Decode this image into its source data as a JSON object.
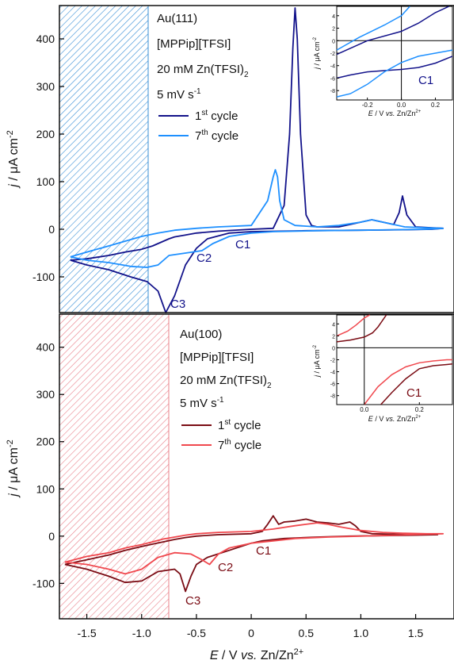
{
  "figure": {
    "xlabel": {
      "pre": "E",
      "mid": " / V ",
      "italic": "vs.",
      "post": " Zn/Zn",
      "sup": "2+"
    },
    "ylabel": {
      "pre": "j",
      "mid": " / μA cm",
      "sup": "-2"
    },
    "x_ticks": [
      "-1.5",
      "-1.0",
      "-0.5",
      "0",
      "0.5",
      "1.0",
      "1.5"
    ],
    "y_ticks": [
      "-100",
      "0",
      "100",
      "200",
      "300",
      "400"
    ]
  },
  "chart_data": [
    {
      "type": "line",
      "panel": "top",
      "colors": {
        "cycle1": "#12128a",
        "cycle7": "#1e90ff",
        "hatch": "#3a8fd6"
      },
      "legend": {
        "lines": [
          "Au(111)",
          "[MPPip][TFSI]",
          "20 mM Zn(TFSI)",
          "5 mV s"
        ],
        "sub": "2",
        "sup": "-1",
        "cycle1_num": "1",
        "cycle1_sup": "st",
        "cycle1_text": " cycle",
        "cycle7_num": "7",
        "cycle7_sup": "th",
        "cycle7_text": " cycle"
      },
      "annotations": [
        "C1",
        "C2",
        "C3"
      ],
      "hatched_region": [
        -1.72,
        -0.95
      ],
      "xlim": [
        -1.75,
        1.85
      ],
      "ylim": [
        -175,
        470
      ],
      "series": [
        {
          "key": "cycle1",
          "x": [
            -1.65,
            -1.5,
            -1.3,
            -1.15,
            -1.0,
            -0.9,
            -0.8,
            -0.75,
            -0.7,
            -0.6,
            -0.5,
            -0.3,
            0.0,
            0.2,
            0.3,
            0.35,
            0.38,
            0.4,
            0.42,
            0.45,
            0.5,
            0.55,
            0.6,
            0.8,
            0.9,
            1.0,
            1.1,
            1.2,
            1.3,
            1.35,
            1.38,
            1.42,
            1.5,
            1.65,
            1.75,
            1.65,
            1.4,
            1.0,
            0.5,
            0.0,
            -0.2,
            -0.4,
            -0.5,
            -0.6,
            -0.7,
            -0.78,
            -0.85,
            -0.95,
            -1.1,
            -1.3,
            -1.5,
            -1.65
          ],
          "y": [
            -65,
            -62,
            -55,
            -48,
            -42,
            -35,
            -25,
            -20,
            -16,
            -12,
            -8,
            -4,
            0,
            2,
            50,
            200,
            380,
            465,
            400,
            200,
            30,
            8,
            5,
            5,
            10,
            15,
            20,
            15,
            10,
            35,
            70,
            30,
            5,
            3,
            2,
            0,
            -1,
            -2,
            -3,
            -5,
            -8,
            -20,
            -40,
            -75,
            -140,
            -175,
            -130,
            -110,
            -100,
            -85,
            -75,
            -65
          ]
        },
        {
          "key": "cycle7",
          "x": [
            -1.65,
            -1.5,
            -1.3,
            -1.15,
            -1.0,
            -0.85,
            -0.7,
            -0.5,
            -0.3,
            0.0,
            0.15,
            0.2,
            0.22,
            0.24,
            0.26,
            0.3,
            0.4,
            0.6,
            0.8,
            1.0,
            1.1,
            1.2,
            1.4,
            1.6,
            1.75,
            1.6,
            1.3,
            1.0,
            0.6,
            0.2,
            0.0,
            -0.2,
            -0.35,
            -0.45,
            -0.6,
            -0.75,
            -0.85,
            -0.95,
            -1.1,
            -1.3,
            -1.5,
            -1.65
          ],
          "y": [
            -58,
            -48,
            -35,
            -25,
            -15,
            -8,
            -2,
            2,
            5,
            8,
            60,
            110,
            125,
            110,
            60,
            20,
            8,
            5,
            8,
            15,
            20,
            15,
            5,
            3,
            2,
            0,
            -1,
            -2,
            -3,
            -5,
            -8,
            -15,
            -30,
            -45,
            -50,
            -55,
            -75,
            -80,
            -78,
            -70,
            -65,
            -58
          ]
        }
      ],
      "inset": {
        "annotation": "C1",
        "xlim": [
          -0.38,
          0.3
        ],
        "ylim": [
          -9.5,
          5.5
        ],
        "x_ticks": [
          "-0.2",
          "0.0",
          "0.2"
        ],
        "y_ticks": [
          "-8",
          "-6",
          "-4",
          "-2",
          "0",
          "2",
          "4"
        ],
        "series": [
          {
            "key": "cycle1",
            "x": [
              -0.38,
              -0.2,
              0.0,
              0.1,
              0.2,
              0.28
            ],
            "y": [
              -2.2,
              0.0,
              1.5,
              2.8,
              4.5,
              5.5
            ]
          },
          {
            "key": "cycle1",
            "x": [
              -0.38,
              -0.3,
              -0.2,
              -0.1,
              0.0,
              0.1,
              0.2,
              0.3
            ],
            "y": [
              -6.0,
              -5.5,
              -5.0,
              -4.8,
              -4.6,
              -4.3,
              -3.6,
              -2.5
            ]
          },
          {
            "key": "cycle7",
            "x": [
              -0.38,
              -0.25,
              -0.1,
              0.0,
              0.05
            ],
            "y": [
              -1.5,
              0.5,
              2.5,
              4.0,
              5.5
            ]
          },
          {
            "key": "cycle7",
            "x": [
              -0.38,
              -0.3,
              -0.2,
              -0.1,
              0.0,
              0.1,
              0.2,
              0.3
            ],
            "y": [
              -9.0,
              -8.5,
              -7.0,
              -5.0,
              -3.5,
              -2.5,
              -2.0,
              -1.5
            ]
          }
        ]
      }
    },
    {
      "type": "line",
      "panel": "bottom",
      "colors": {
        "cycle1": "#7a0c14",
        "cycle7": "#f0484e",
        "hatch": "#e9808a"
      },
      "legend": {
        "lines": [
          "Au(100)",
          "[MPPip][TFSI]",
          "20 mM Zn(TFSI)",
          "5 mV s"
        ],
        "sub": "2",
        "sup": "-1",
        "cycle1_num": "1",
        "cycle1_sup": "st",
        "cycle1_text": " cycle",
        "cycle7_num": "7",
        "cycle7_sup": "th",
        "cycle7_text": " cycle"
      },
      "annotations": [
        "C1",
        "C2",
        "C3"
      ],
      "hatched_region": [
        -1.72,
        -0.75
      ],
      "xlim": [
        -1.75,
        1.85
      ],
      "ylim": [
        -175,
        470
      ],
      "series": [
        {
          "key": "cycle1",
          "x": [
            -1.7,
            -1.5,
            -1.3,
            -1.15,
            -1.0,
            -0.9,
            -0.8,
            -0.7,
            -0.6,
            -0.5,
            -0.3,
            0.0,
            0.1,
            0.15,
            0.2,
            0.25,
            0.3,
            0.4,
            0.5,
            0.6,
            0.7,
            0.8,
            0.9,
            0.95,
            1.0,
            1.1,
            1.3,
            1.5,
            1.7,
            1.5,
            1.2,
            0.9,
            0.6,
            0.3,
            0.1,
            0.0,
            -0.2,
            -0.4,
            -0.5,
            -0.55,
            -0.6,
            -0.65,
            -0.7,
            -0.85,
            -1.0,
            -1.15,
            -1.3,
            -1.5,
            -1.7
          ],
          "y": [
            -60,
            -50,
            -40,
            -30,
            -22,
            -17,
            -12,
            -7,
            -3,
            0,
            3,
            5,
            10,
            25,
            43,
            25,
            30,
            32,
            36,
            30,
            28,
            25,
            30,
            22,
            10,
            5,
            4,
            3,
            3,
            2,
            1,
            0,
            -2,
            -5,
            -10,
            -15,
            -30,
            -45,
            -60,
            -85,
            -117,
            -80,
            -70,
            -75,
            -95,
            -98,
            -85,
            -70,
            -60
          ]
        },
        {
          "key": "cycle7",
          "x": [
            -1.7,
            -1.5,
            -1.3,
            -1.15,
            -1.0,
            -0.9,
            -0.8,
            -0.7,
            -0.6,
            -0.5,
            -0.3,
            0.0,
            0.2,
            0.4,
            0.5,
            0.6,
            0.7,
            0.8,
            1.0,
            1.2,
            1.4,
            1.6,
            1.75,
            1.6,
            1.3,
            1.0,
            0.7,
            0.4,
            0.2,
            0.0,
            -0.2,
            -0.3,
            -0.38,
            -0.45,
            -0.55,
            -0.7,
            -0.85,
            -1.0,
            -1.15,
            -1.3,
            -1.5,
            -1.7
          ],
          "y": [
            -55,
            -43,
            -35,
            -25,
            -18,
            -12,
            -6,
            -2,
            2,
            5,
            8,
            10,
            15,
            22,
            25,
            28,
            25,
            20,
            12,
            8,
            6,
            5,
            5,
            4,
            2,
            0,
            -2,
            -5,
            -10,
            -15,
            -25,
            -38,
            -60,
            -50,
            -38,
            -35,
            -45,
            -70,
            -80,
            -70,
            -60,
            -55
          ]
        }
      ],
      "inset": {
        "annotation": "C1",
        "xlim": [
          -0.1,
          0.32
        ],
        "ylim": [
          -9.5,
          5.5
        ],
        "x_ticks": [
          "0.0",
          "0.2"
        ],
        "y_ticks": [
          "-8",
          "-6",
          "-4",
          "-2",
          "0",
          "2",
          "4"
        ],
        "series": [
          {
            "key": "cycle1",
            "x": [
              -0.1,
              -0.05,
              0.0,
              0.03,
              0.05,
              0.08
            ],
            "y": [
              1.0,
              1.3,
              1.8,
              2.5,
              3.5,
              5.5
            ]
          },
          {
            "key": "cycle1",
            "x": [
              0.06,
              0.1,
              0.15,
              0.2,
              0.25,
              0.3,
              0.32
            ],
            "y": [
              -9.5,
              -7.5,
              -5.2,
              -3.5,
              -3.0,
              -2.8,
              -2.7
            ]
          },
          {
            "key": "cycle7",
            "x": [
              -0.1,
              -0.06,
              -0.03,
              0.0,
              0.02
            ],
            "y": [
              2.0,
              2.8,
              3.8,
              5.0,
              5.5
            ]
          },
          {
            "key": "cycle7",
            "x": [
              0.0,
              0.05,
              0.1,
              0.15,
              0.2,
              0.25,
              0.3,
              0.32
            ],
            "y": [
              -9.5,
              -6.5,
              -4.5,
              -3.2,
              -2.5,
              -2.2,
              -2.0,
              -2.0
            ]
          }
        ]
      }
    }
  ]
}
